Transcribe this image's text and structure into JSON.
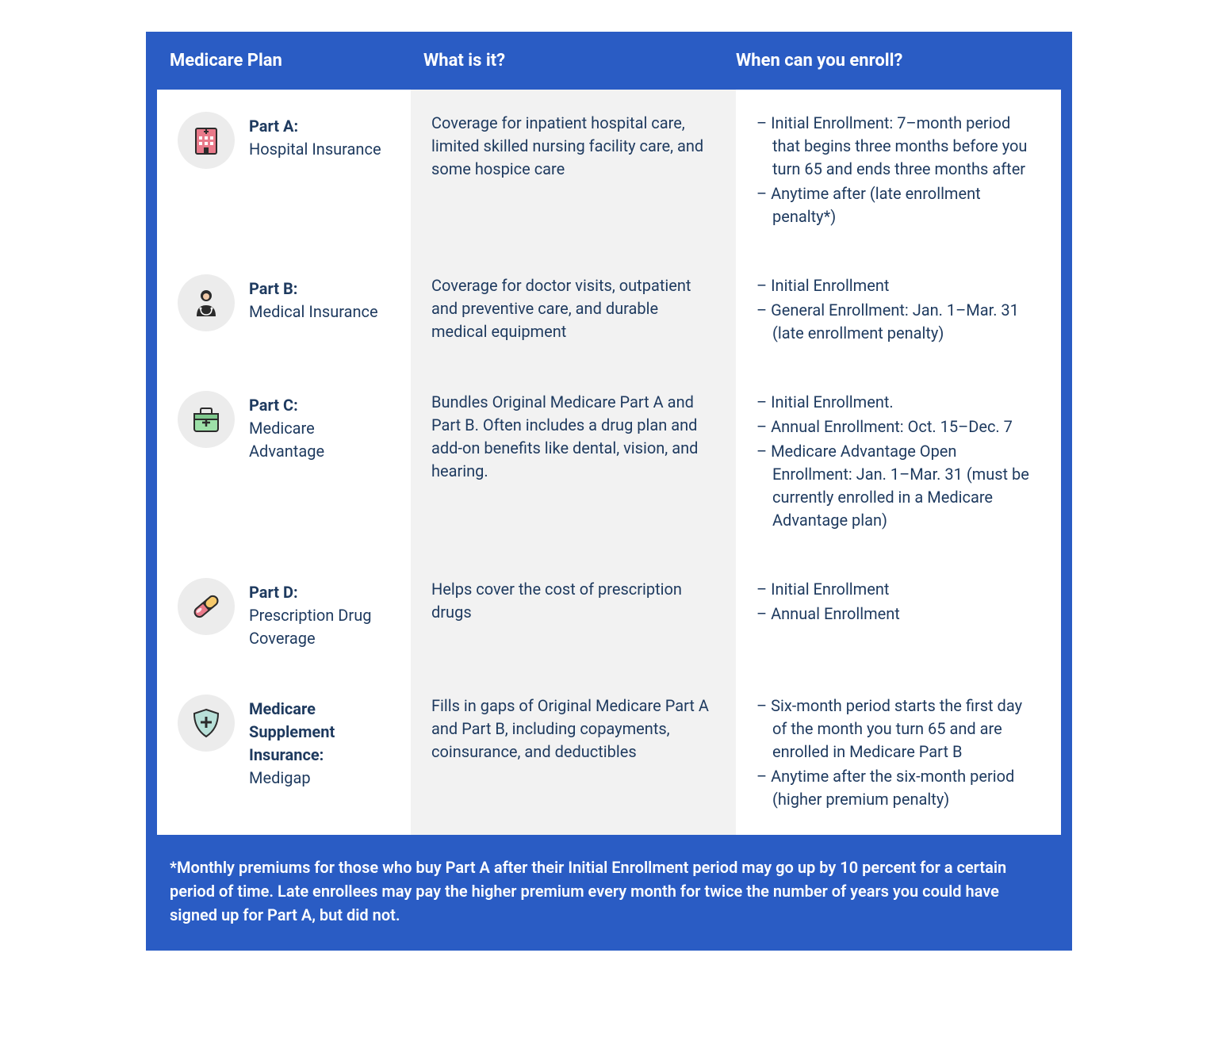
{
  "colors": {
    "blue_bg": "#2a5cc4",
    "text_dark": "#1e3a5f",
    "text_white": "#ffffff",
    "icon_circle_bg": "#ececec",
    "desc_col_bg": "#f2f2f2"
  },
  "headers": {
    "plan": "Medicare Plan",
    "what": "What is it?",
    "when": "When can you enroll?"
  },
  "rows": [
    {
      "icon": "hospital",
      "plan_title": "Part A:",
      "plan_sub": "Hospital Insurance",
      "desc": "Coverage for inpatient hospital care, limited skilled nursing facility care, and some hospice care",
      "enroll": [
        "– Initial Enrollment: 7–month period that begins three months before you turn 65 and ends three months after",
        "– Anytime after (late enrollment penalty*)"
      ]
    },
    {
      "icon": "doctor",
      "plan_title": "Part B:",
      "plan_sub": "Medical Insurance",
      "desc": "Coverage for doctor visits, outpatient and preventive care, and durable medical equipment",
      "enroll": [
        "– Initial Enrollment",
        "– General Enrollment: Jan. 1–Mar. 31 (late enrollment penalty)"
      ]
    },
    {
      "icon": "briefcase",
      "plan_title": "Part C:",
      "plan_sub": "Medicare Advantage",
      "desc": "Bundles Original Medicare Part A and Part B. Often includes a drug plan and add-on benefits like dental, vision, and hearing.",
      "enroll": [
        "– Initial Enrollment.",
        "– Annual Enrollment: Oct. 15–Dec. 7",
        "– Medicare Advantage Open Enrollment: Jan. 1–Mar. 31 (must be currently enrolled in a Medicare Advantage plan)"
      ]
    },
    {
      "icon": "pill",
      "plan_title": "Part D:",
      "plan_sub": "Prescription Drug Coverage",
      "desc": "Helps cover the cost of prescription drugs",
      "enroll": [
        "– Initial Enrollment",
        "– Annual Enrollment"
      ]
    },
    {
      "icon": "shield",
      "plan_title": "Medicare Supplement Insurance:",
      "plan_sub": "Medigap",
      "desc": "Fills in gaps of Original Medicare Part A and Part B, including copayments, coinsurance, and deductibles",
      "enroll": [
        "– Six-month period starts the first day of the month you turn 65 and are enrolled in Medicare Part B",
        "– Anytime after the six-month period (higher premium penalty)"
      ]
    }
  ],
  "footer": "*Monthly premiums for those who buy Part A after their Initial Enrollment period may go up by 10 percent for a certain period of time. Late enrollees may pay the higher premium every month for twice the number of years you could have signed up for Part A, but did not."
}
